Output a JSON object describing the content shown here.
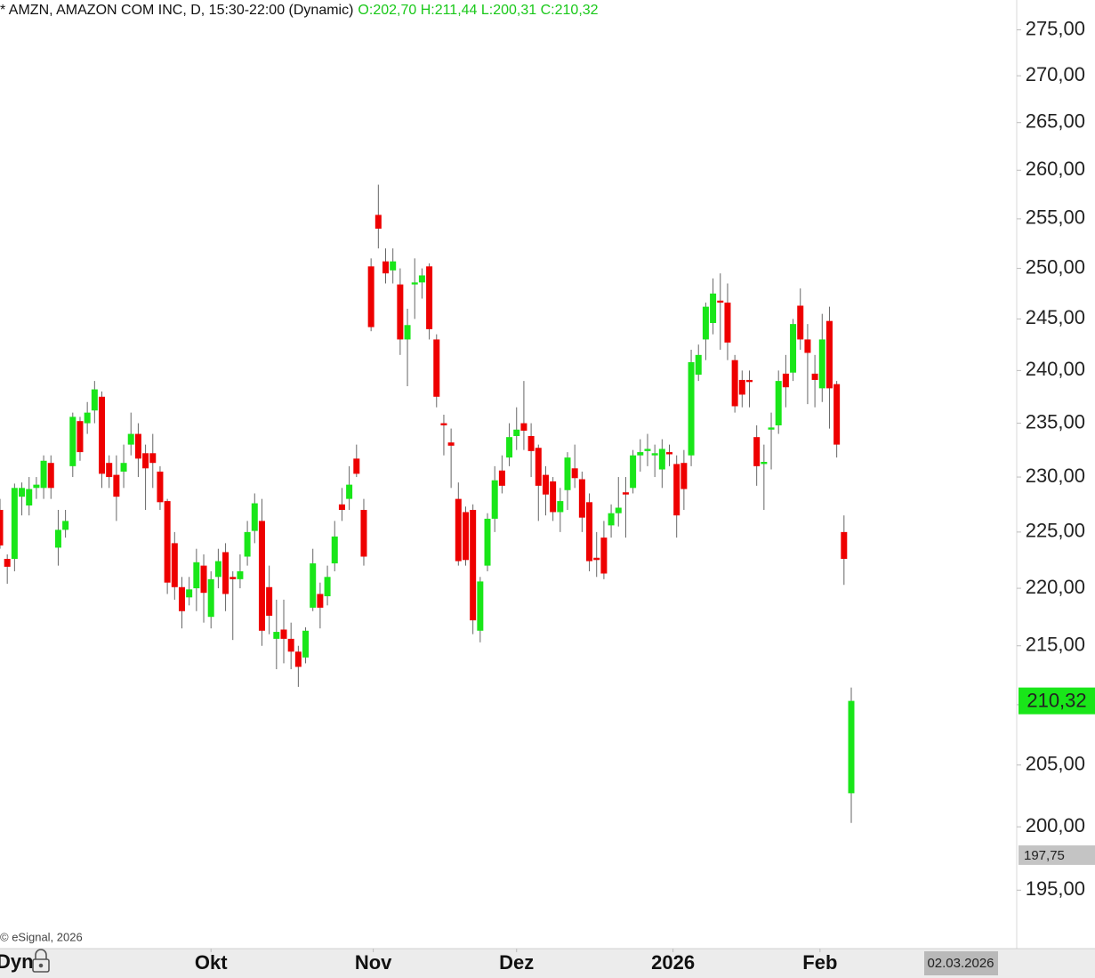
{
  "chart_data": {
    "type": "candlestick",
    "title": "* AMZN, AMAZON COM INC, D, 15:30-22:00 (Dynamic)",
    "ohlc_label": "O:202,70 H:211,44 L:200,31 C:210,32",
    "watermark": "© eSignal, 2026",
    "axis_mode_label": "Dyn",
    "up_color": "#19e619",
    "down_color": "#ee0000",
    "log_scale": true,
    "grid": false,
    "ylim": [
      190.7,
      278.3
    ],
    "yticks": [
      {
        "value": 195,
        "label": "195,00"
      },
      {
        "value": 200,
        "label": "200,00"
      },
      {
        "value": 205,
        "label": "205,00"
      },
      {
        "value": 210,
        "label": "210,00"
      },
      {
        "value": 215,
        "label": "215,00"
      },
      {
        "value": 220,
        "label": "220,00"
      },
      {
        "value": 225,
        "label": "225,00"
      },
      {
        "value": 230,
        "label": "230,00"
      },
      {
        "value": 235,
        "label": "235,00"
      },
      {
        "value": 240,
        "label": "240,00"
      },
      {
        "value": 245,
        "label": "245,00"
      },
      {
        "value": 250,
        "label": "250,00"
      },
      {
        "value": 255,
        "label": "255,00"
      },
      {
        "value": 260,
        "label": "260,00"
      },
      {
        "value": 265,
        "label": "265,00"
      },
      {
        "value": 270,
        "label": "270,00"
      },
      {
        "value": 275,
        "label": "275,00"
      }
    ],
    "xticks": [
      {
        "value": 29,
        "label": "Okt"
      },
      {
        "value": 51.3,
        "label": "Nov"
      },
      {
        "value": 71,
        "label": "Dez"
      },
      {
        "value": 92.5,
        "label": "2026"
      },
      {
        "value": 112.7,
        "label": "Feb"
      }
    ],
    "last_price": {
      "value": 210.32,
      "label": "210,32"
    },
    "crosshair_price": {
      "value": 197.75,
      "label": "197,75"
    },
    "crosshair_date": "02.03.2026",
    "candles": {
      "open": [
        227,
        222.6,
        222.6,
        228.2,
        227.4,
        229,
        229,
        231.3,
        223.6,
        225.2,
        231,
        235.2,
        235,
        236.2,
        237.5,
        231.3,
        230.2,
        230.5,
        233,
        234,
        232.2,
        232.2,
        230.5,
        227.8,
        224,
        220.1,
        219.2,
        220,
        222,
        217.5,
        221,
        223.2,
        221,
        220.8,
        222.8,
        225.1,
        226,
        220.1,
        215.6,
        216.4,
        215.6,
        214.5,
        214,
        218.3,
        219.5,
        219.3,
        222.2,
        227.5,
        228,
        231.7,
        227,
        250.2,
        255.4,
        250.7,
        249.8,
        248.4,
        243,
        248.4,
        248.6,
        250.2,
        243,
        235,
        233.2,
        228,
        226.8,
        227,
        216.3,
        222,
        226.2,
        230.6,
        231.8,
        233.8,
        235,
        233.8,
        232.7,
        230.2,
        229.6,
        226.8,
        228.8,
        230.8,
        229.8,
        227.7,
        222.7,
        224.5,
        225.6,
        226.7,
        228.6,
        229,
        232,
        232.4,
        232,
        230.7,
        232.3,
        231.2,
        231.3,
        232,
        239.6,
        243,
        244.6,
        246.8,
        246.6,
        241,
        239.1,
        239.1,
        233.7,
        231.2,
        234.4,
        234.8,
        239.7,
        239.8,
        246.3,
        243,
        239.7,
        238.3,
        244.8,
        238.7,
        225,
        202.7
      ],
      "high": [
        228,
        223,
        229.4,
        229.5,
        230,
        230,
        232,
        232,
        227,
        227,
        236,
        235.6,
        237,
        239,
        238,
        232,
        232,
        233,
        236,
        235,
        233,
        234,
        231,
        228,
        225,
        221,
        221,
        223.5,
        223,
        221.5,
        223.5,
        224,
        221.5,
        223,
        226,
        228.5,
        228,
        222,
        219,
        219,
        217,
        215,
        216.6,
        223.5,
        220.5,
        222,
        226,
        229,
        231,
        233,
        228,
        251,
        258.5,
        252,
        252,
        250,
        246,
        251,
        250,
        250.5,
        243.5,
        235.8,
        234.5,
        229.5,
        227.3,
        227.5,
        221,
        226.7,
        231,
        232,
        235,
        236.5,
        239,
        235,
        233,
        231,
        230,
        229,
        232.3,
        233,
        230.5,
        228.5,
        225,
        226,
        227.5,
        230,
        230,
        232.5,
        233.5,
        234,
        233,
        233.5,
        233,
        232,
        232.5,
        242,
        242.5,
        246.6,
        249,
        249.5,
        248.5,
        241.5,
        240,
        240,
        234.8,
        233,
        236,
        240,
        241.5,
        245,
        248,
        244.5,
        241.5,
        245.5,
        246.2,
        239,
        226.5,
        211.44
      ],
      "low": [
        223.5,
        220.4,
        221.5,
        226.5,
        226.5,
        228,
        228,
        228,
        222,
        224.5,
        230,
        231.5,
        234,
        235,
        229,
        229,
        226,
        229,
        232,
        230,
        227,
        229,
        227,
        219.5,
        219,
        216.5,
        218.5,
        218,
        217,
        216.5,
        220,
        218,
        215.5,
        220,
        222,
        224,
        215,
        216,
        213,
        213.5,
        213,
        211.5,
        213.5,
        218,
        216.5,
        218.5,
        221.5,
        226,
        227,
        230,
        222,
        243.8,
        252,
        248.5,
        248.5,
        241.5,
        238.5,
        245,
        247,
        243,
        236.5,
        232,
        229,
        222,
        222,
        216,
        215.3,
        221.5,
        225,
        228.5,
        231,
        232.5,
        232.5,
        230,
        226,
        226.5,
        226,
        225,
        227,
        229,
        225,
        221.5,
        221,
        220.8,
        224.5,
        225.5,
        224.5,
        228.5,
        230.5,
        231,
        230,
        229,
        231,
        224.5,
        227,
        231,
        239,
        241,
        243.5,
        242,
        241,
        236,
        236.5,
        236.5,
        229.2,
        227,
        230.7,
        234,
        236.5,
        239,
        242,
        236.8,
        236.5,
        237,
        234.5,
        231.8,
        220.3,
        200.31
      ],
      "close": [
        223.8,
        221.9,
        229,
        229,
        228.9,
        229.3,
        231.5,
        229,
        225.2,
        226,
        235.6,
        232.3,
        236,
        238.2,
        230.3,
        230,
        228.2,
        231.3,
        234,
        231.7,
        230.8,
        231.3,
        227.7,
        220.5,
        220.1,
        218,
        219.9,
        222.3,
        219.6,
        220.8,
        222.4,
        219.5,
        220.8,
        221.5,
        225,
        227.6,
        216.3,
        217.6,
        216.2,
        215.6,
        214.5,
        213.2,
        216.3,
        222.2,
        218.3,
        221,
        224.6,
        227,
        229.3,
        230.3,
        222.8,
        244.2,
        254,
        249.5,
        250.7,
        243,
        244.4,
        248.6,
        249.3,
        244,
        237.5,
        234.8,
        232.9,
        222.4,
        222.5,
        217.2,
        220.6,
        226.2,
        229.7,
        229.2,
        233.7,
        234.4,
        234.3,
        232.4,
        229.2,
        228.4,
        226.8,
        227.8,
        231.8,
        229.9,
        226.3,
        222.4,
        222.5,
        221.3,
        226.7,
        227.2,
        228.4,
        232,
        232.3,
        232.6,
        232.2,
        232.6,
        232.1,
        226.5,
        228.9,
        240.8,
        241.5,
        246.2,
        247.5,
        246.6,
        242.7,
        236.6,
        237.7,
        238.9,
        231,
        231.4,
        234.6,
        239,
        238.4,
        244.5,
        243,
        241.7,
        239.1,
        243,
        238.3,
        233,
        222.6,
        210.32
      ]
    }
  }
}
